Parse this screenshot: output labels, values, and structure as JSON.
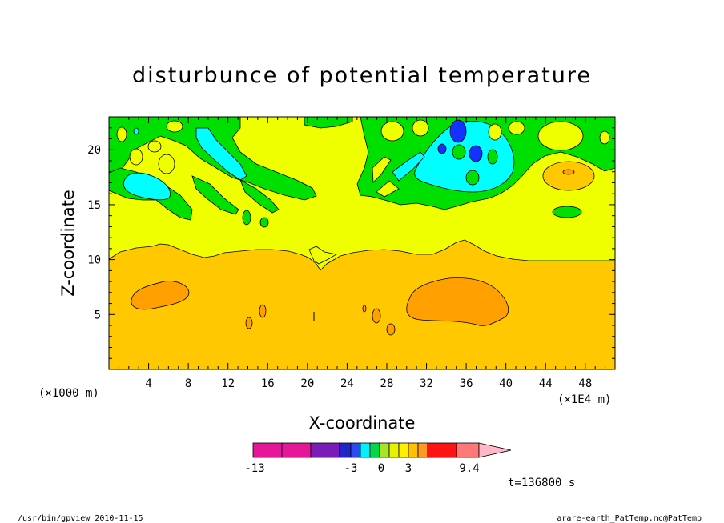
{
  "chart_data": {
    "type": "heatmap",
    "title": "disturbunce of potential temperature",
    "xlabel": "X-coordinate",
    "ylabel": "Z-coordinate",
    "x_unit_label": "(×1E4 m)",
    "y_unit_label": "(×1000 m)",
    "xlim": [
      0,
      51
    ],
    "ylim": [
      0,
      23
    ],
    "xticks": [
      4,
      8,
      12,
      16,
      20,
      24,
      28,
      32,
      36,
      40,
      44,
      48
    ],
    "yticks": [
      5,
      10,
      15,
      20
    ],
    "colorbar": {
      "colors": [
        "#e6169b",
        "#e6169b",
        "#7a1db8",
        "#2226c8",
        "#2a4bf0",
        "#00f0ff",
        "#00d84a",
        "#a6e62a",
        "#e6f200",
        "#fff000",
        "#ffc000",
        "#ff9a20",
        "#ff6420",
        "#ff1212",
        "#ff7878",
        "#ffb8c8"
      ],
      "tick_labels": [
        "-13",
        "-3",
        "0",
        "3",
        "9.4"
      ]
    },
    "regions": [
      {
        "level": "0 to 1",
        "color": "#f0ff00",
        "description": "upper layer above ~10"
      },
      {
        "level": "1 to 2",
        "color": "#ffc800",
        "description": "lower layer below ~10"
      },
      {
        "level": "2 to 3",
        "color": "#ffa000",
        "description": "warm pockets near x~5 and x~35"
      },
      {
        "level": "-1 to 0",
        "color": "#00e000",
        "description": "patches above 15"
      },
      {
        "level": "-2 to -1",
        "color": "#00ffff",
        "description": "cool patches near z~18-22"
      },
      {
        "level": "-3 to -2",
        "color": "#1432ff",
        "description": "small cores near x~35-37, z~19-22"
      }
    ],
    "annotation": "t=136800 s"
  },
  "footer": {
    "left": "/usr/bin/gpview   2010-11-15",
    "right": "arare-earth_PatTemp.nc@PatTemp"
  }
}
